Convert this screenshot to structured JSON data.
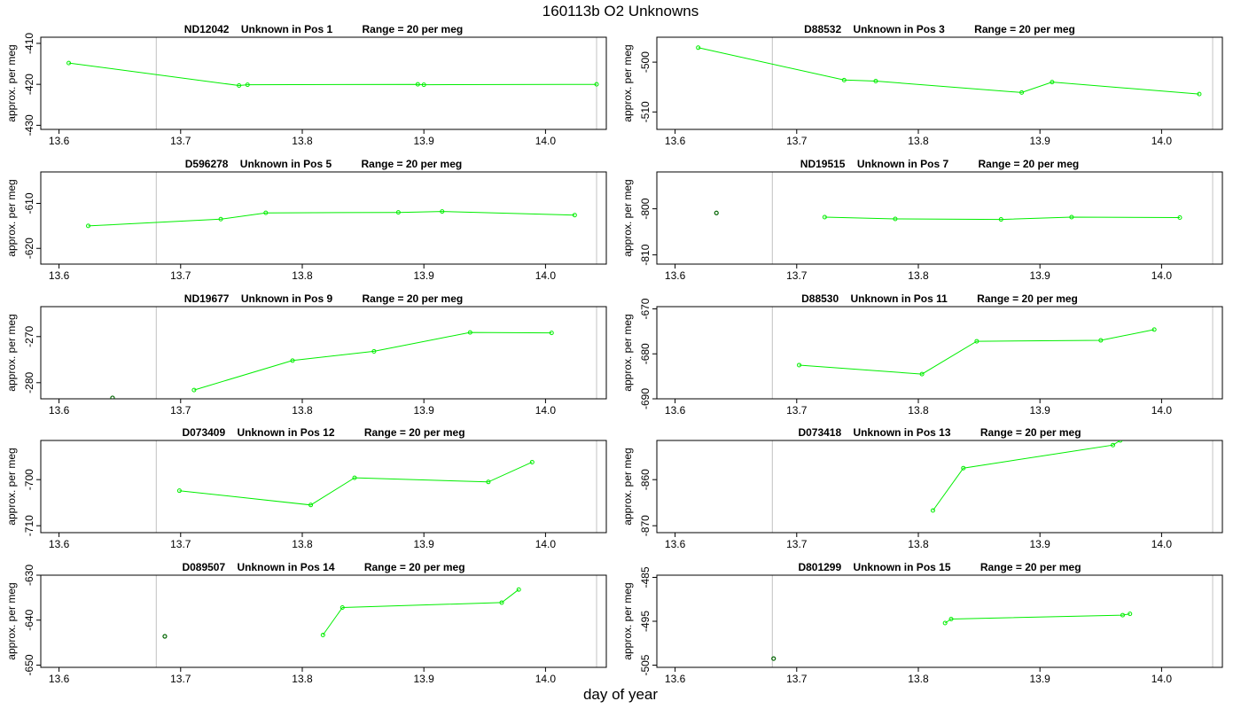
{
  "page": {
    "title": "160113b  O2 Unknowns",
    "xlabel": "day of year"
  },
  "style": {
    "line_color": "#00ee00",
    "outlier_color": "#006400",
    "marker_line_color": "#cccccc",
    "frame_color": "#000000"
  },
  "chart_data": [
    {
      "type": "line",
      "title": "ND12042    Unknown in Pos 1          Range = 20 per meg",
      "ylabel": "approx. per meg",
      "xlim": [
        13.585,
        14.05
      ],
      "ylim": [
        -431,
        -408.5
      ],
      "yticks": [
        -410,
        -420,
        -430
      ],
      "xticks": [
        13.6,
        13.7,
        13.8,
        13.9,
        14.0
      ],
      "vlines": [
        13.68,
        14.042
      ],
      "x": [
        13.608,
        13.748,
        13.755,
        13.895,
        13.9,
        14.042
      ],
      "y": [
        -414.8,
        -420.3,
        -420.1,
        -420.0,
        -420.1,
        -420.0
      ],
      "outliers": []
    },
    {
      "type": "line",
      "title": "D88532    Unknown in Pos 3          Range = 20 per meg",
      "ylabel": "approx. per meg",
      "xlim": [
        13.585,
        14.05
      ],
      "ylim": [
        -513.5,
        -495
      ],
      "yticks": [
        -500,
        -510
      ],
      "xticks": [
        13.6,
        13.7,
        13.8,
        13.9,
        14.0
      ],
      "vlines": [
        13.68,
        14.042
      ],
      "x": [
        13.619,
        13.739,
        13.765,
        13.885,
        13.91,
        14.031
      ],
      "y": [
        -497.1,
        -503.6,
        -503.8,
        -506.1,
        -504.0,
        -506.4
      ],
      "outliers": []
    },
    {
      "type": "line",
      "title": "D596278    Unknown in Pos 5          Range = 20 per meg",
      "ylabel": "approx. per meg",
      "xlim": [
        13.585,
        14.05
      ],
      "ylim": [
        -623.5,
        -603
      ],
      "yticks": [
        -610,
        -620
      ],
      "xticks": [
        13.6,
        13.7,
        13.8,
        13.9,
        14.0
      ],
      "vlines": [
        13.68,
        14.042
      ],
      "x": [
        13.624,
        13.733,
        13.77,
        13.879,
        13.915,
        14.024
      ],
      "y": [
        -615.0,
        -613.5,
        -612.1,
        -612.0,
        -611.8,
        -612.6
      ],
      "outliers": []
    },
    {
      "type": "line",
      "title": "ND19515    Unknown in Pos 7          Range = 20 per meg",
      "ylabel": "approx. per meg",
      "xlim": [
        13.585,
        14.05
      ],
      "ylim": [
        -812,
        -792
      ],
      "yticks": [
        -800,
        -810
      ],
      "xticks": [
        13.6,
        13.7,
        13.8,
        13.9,
        14.0
      ],
      "vlines": [
        13.68,
        14.042
      ],
      "x": [
        13.723,
        13.781,
        13.868,
        13.926,
        14.015
      ],
      "y": [
        -801.8,
        -802.2,
        -802.3,
        -801.8,
        -801.9
      ],
      "outliers": [
        {
          "x": 13.634,
          "y": -800.9
        }
      ]
    },
    {
      "type": "line",
      "title": "ND19677    Unknown in Pos 9          Range = 20 per meg",
      "ylabel": "approx. per meg",
      "xlim": [
        13.585,
        14.05
      ],
      "ylim": [
        -283.5,
        -263.5
      ],
      "yticks": [
        -270,
        -280
      ],
      "xticks": [
        13.6,
        13.7,
        13.8,
        13.9,
        14.0
      ],
      "vlines": [
        13.68,
        14.042
      ],
      "x": [
        13.711,
        13.792,
        13.859,
        13.938,
        14.005
      ],
      "y": [
        -281.6,
        -275.2,
        -273.2,
        -269.1,
        -269.2
      ],
      "outliers": [
        {
          "x": 13.644,
          "y": -283.3
        }
      ]
    },
    {
      "type": "line",
      "title": "D88530    Unknown in Pos 11          Range = 20 per meg",
      "ylabel": "approx. per meg",
      "xlim": [
        13.585,
        14.05
      ],
      "ylim": [
        -690,
        -669.5
      ],
      "yticks": [
        -670,
        -680,
        -690
      ],
      "xticks": [
        13.6,
        13.7,
        13.8,
        13.9,
        14.0
      ],
      "vlines": [
        13.68,
        14.042
      ],
      "x": [
        13.702,
        13.803,
        13.848,
        13.95,
        13.994
      ],
      "y": [
        -682.5,
        -684.5,
        -677.2,
        -677.0,
        -674.6
      ],
      "outliers": []
    },
    {
      "type": "line",
      "title": "D073409    Unknown in Pos 12          Range = 20 per meg",
      "ylabel": "approx. per meg",
      "xlim": [
        13.585,
        14.05
      ],
      "ylim": [
        -711.5,
        -691.5
      ],
      "yticks": [
        -700,
        -710
      ],
      "xticks": [
        13.6,
        13.7,
        13.8,
        13.9,
        14.0
      ],
      "vlines": [
        13.68,
        14.042
      ],
      "x": [
        13.699,
        13.807,
        13.843,
        13.953,
        13.989
      ],
      "y": [
        -702.4,
        -705.5,
        -699.6,
        -700.5,
        -696.2
      ],
      "outliers": []
    },
    {
      "type": "line",
      "title": "D073418    Unknown in Pos 13          Range = 20 per meg",
      "ylabel": "approx. per meg",
      "xlim": [
        13.585,
        14.05
      ],
      "ylim": [
        -871.5,
        -851.5
      ],
      "yticks": [
        -860,
        -870
      ],
      "xticks": [
        13.6,
        13.7,
        13.8,
        13.9,
        14.0
      ],
      "vlines": [
        13.68,
        14.042
      ],
      "x": [
        13.812,
        13.837,
        13.96,
        13.966
      ],
      "y": [
        -866.7,
        -857.5,
        -852.5,
        -851.5
      ],
      "outliers": []
    },
    {
      "type": "line",
      "title": "D089507    Unknown in Pos 14          Range = 20 per meg",
      "ylabel": "approx. per meg",
      "xlim": [
        13.585,
        14.05
      ],
      "ylim": [
        -650.5,
        -630
      ],
      "yticks": [
        -630,
        -640,
        -650
      ],
      "xticks": [
        13.6,
        13.7,
        13.8,
        13.9,
        14.0
      ],
      "vlines": [
        13.68,
        14.042
      ],
      "x": [
        13.817,
        13.833,
        13.964,
        13.978
      ],
      "y": [
        -643.3,
        -637.2,
        -636.1,
        -633.2
      ],
      "outliers": [
        {
          "x": 13.687,
          "y": -643.6
        }
      ]
    },
    {
      "type": "line",
      "title": "D801299    Unknown in Pos 15          Range = 20 per meg",
      "ylabel": "approx. per meg",
      "xlim": [
        13.585,
        14.05
      ],
      "ylim": [
        -505.5,
        -484.5
      ],
      "yticks": [
        -485,
        -495,
        -505
      ],
      "xticks": [
        13.6,
        13.7,
        13.8,
        13.9,
        14.0
      ],
      "vlines": [
        13.68,
        14.042
      ],
      "x": [
        13.822,
        13.827,
        13.968,
        13.974
      ],
      "y": [
        -495.4,
        -494.5,
        -493.6,
        -493.3
      ],
      "outliers": [
        {
          "x": 13.681,
          "y": -503.5
        }
      ]
    }
  ]
}
